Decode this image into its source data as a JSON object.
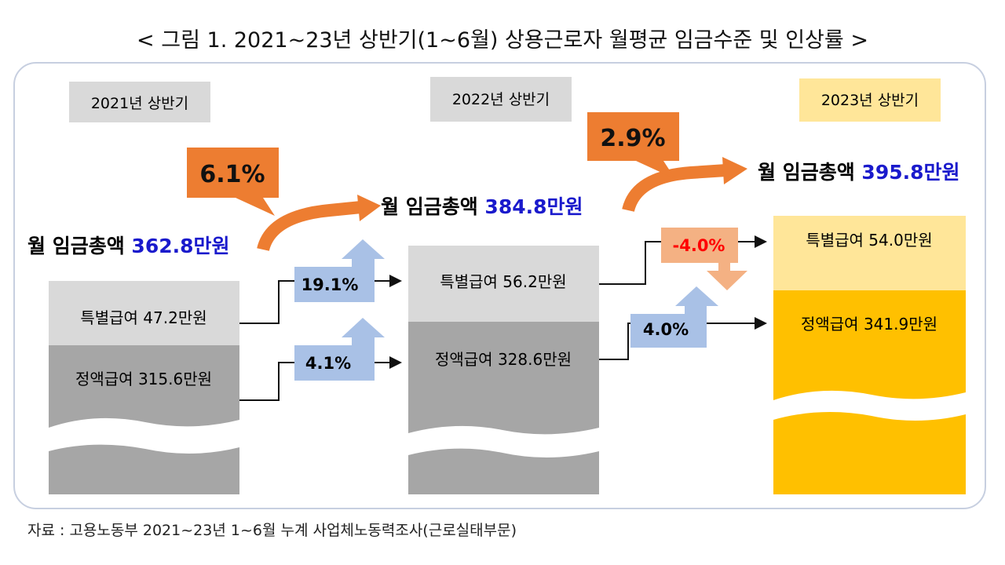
{
  "title": "< 그림 1. 2021~23년 상반기(1~6월) 상용근로자 월평균 임금수준 및 인상률 >",
  "source": "자료 : 고용노동부 2021~23년 1~6월 누계 사업체노동력조사(근로실태부문)",
  "colors": {
    "gray_light": "#d9d9d9",
    "gray_dark": "#a6a6a6",
    "yellow_light": "#ffe699",
    "yellow": "#ffc000",
    "orange": "#ed7d31",
    "blue_arrow": "#a9c1e6",
    "red_arrow": "#f4b183",
    "value_blue": "#1a1acc",
    "negative_red": "#ff0000"
  },
  "years": [
    {
      "label": "2021년 상반기",
      "total_prefix": "월 임금총액 ",
      "total_value": "362.8만원",
      "special": "특별급여 47.2만원",
      "fixed": "정액급여 315.6만원"
    },
    {
      "label": "2022년 상반기",
      "total_prefix": "월 임금총액 ",
      "total_value": "384.8만원",
      "special": "특별급여 56.2만원",
      "fixed": "정액급여 328.6만원"
    },
    {
      "label": "2023년 상반기",
      "total_prefix": "월 임금총액 ",
      "total_value": "395.8만원",
      "special": "특별급여 54.0만원",
      "fixed": "정액급여 341.9만원"
    }
  ],
  "total_growth": [
    "6.1%",
    "2.9%"
  ],
  "special_growth": [
    "19.1%",
    "-4.0%"
  ],
  "fixed_growth": [
    "4.1%",
    "4.0%"
  ]
}
